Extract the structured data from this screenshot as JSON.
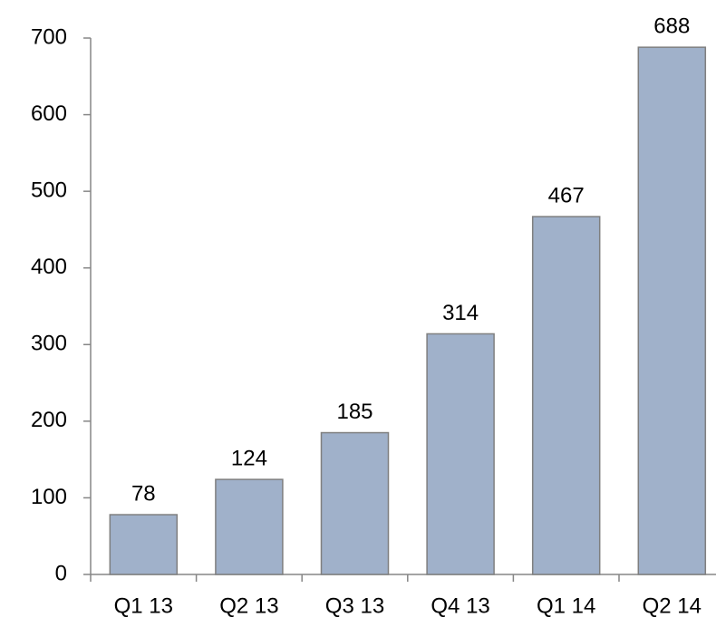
{
  "chart_data": {
    "type": "bar",
    "categories": [
      "Q1 13",
      "Q2 13",
      "Q3 13",
      "Q4 13",
      "Q1 14",
      "Q2 14"
    ],
    "values": [
      78,
      124,
      185,
      314,
      467,
      688
    ],
    "color": "#a0b1ca",
    "ylim": [
      0,
      700
    ],
    "yticks": [
      0,
      100,
      200,
      300,
      400,
      500,
      600,
      700
    ],
    "grid": false
  }
}
